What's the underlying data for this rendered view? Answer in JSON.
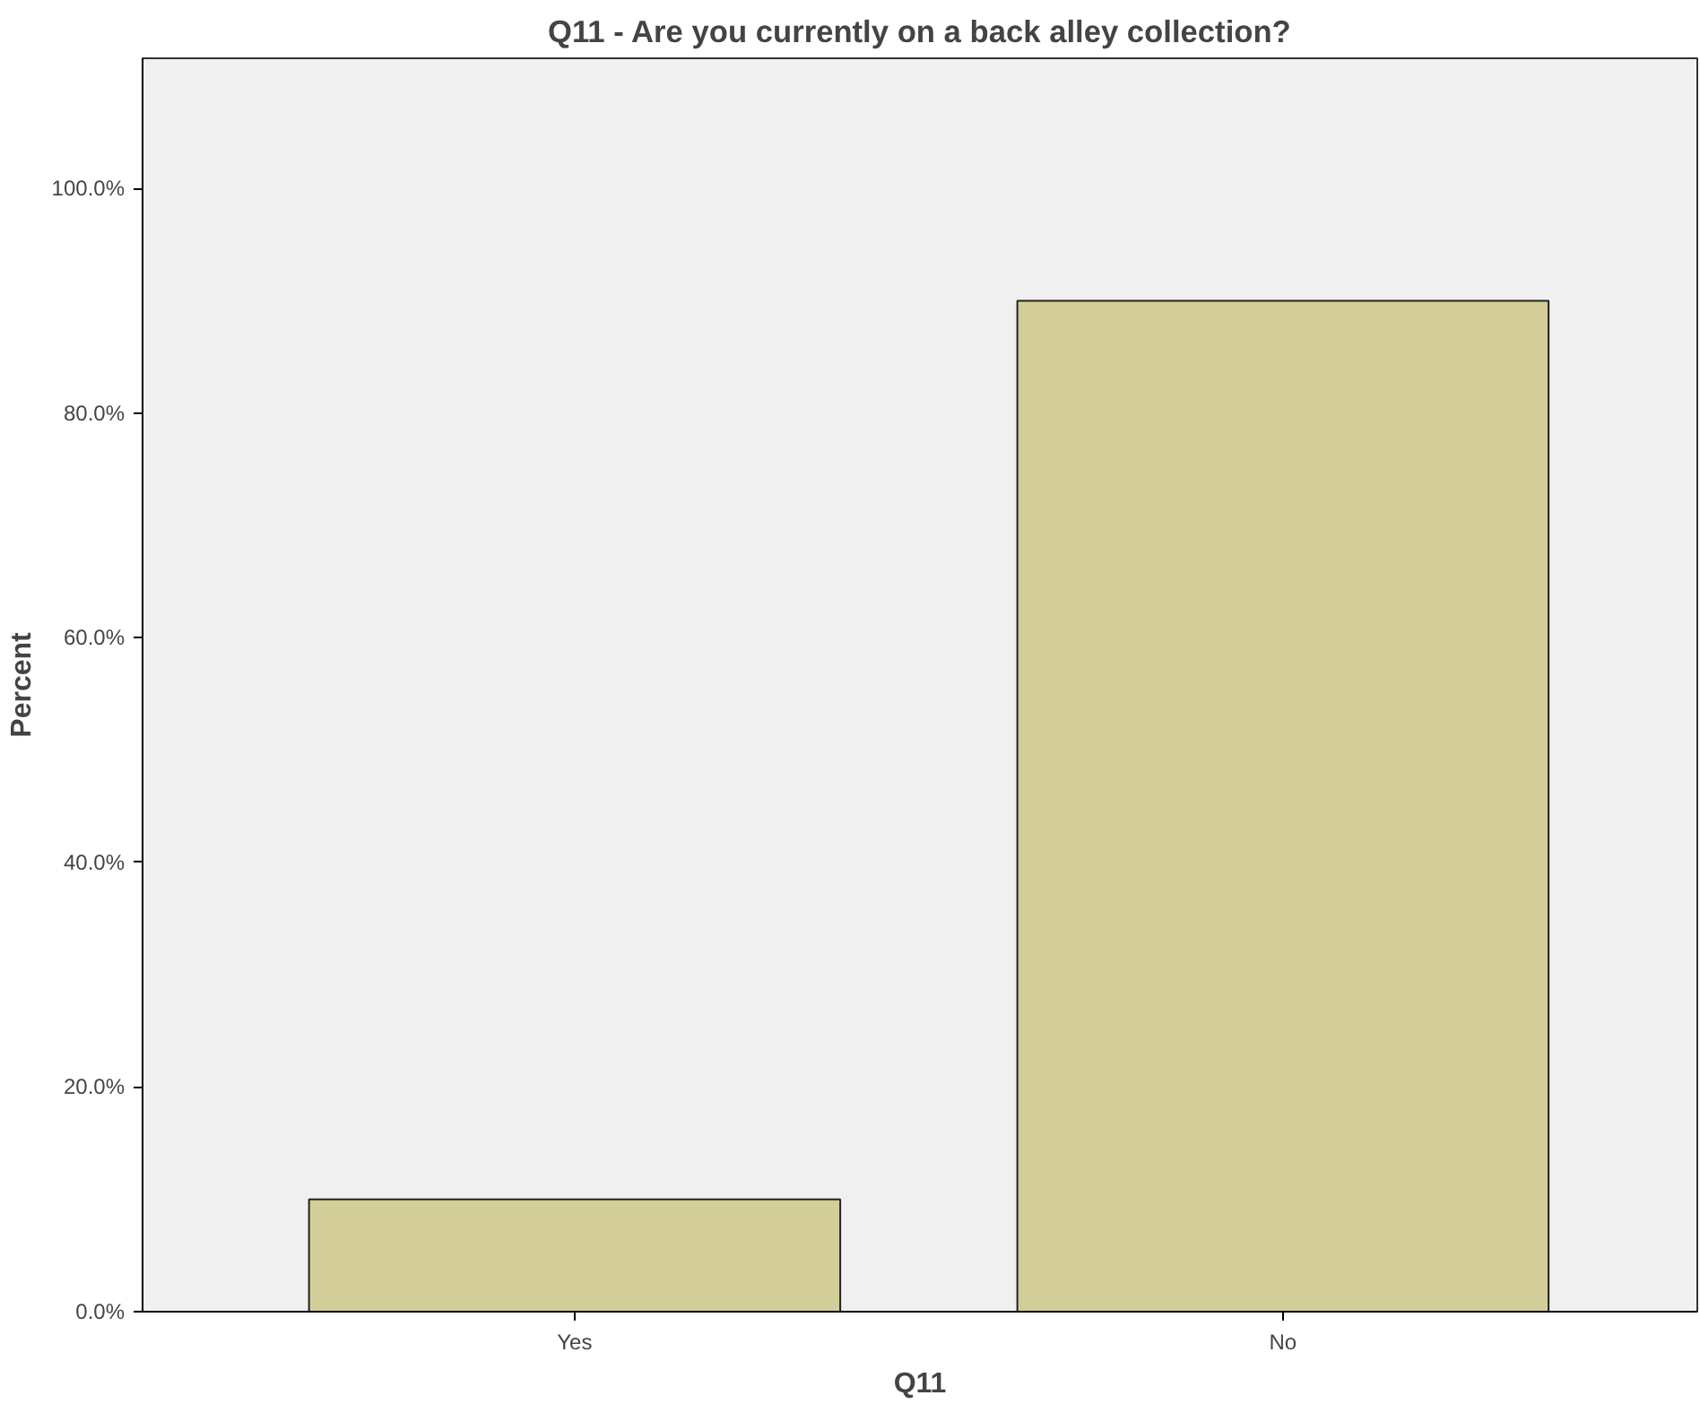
{
  "chart_data": {
    "type": "bar",
    "title": "Q11 - Are you currently on a back alley collection?",
    "xlabel": "Q11",
    "ylabel": "Percent",
    "categories": [
      "Yes",
      "No"
    ],
    "values": [
      10.0,
      90.0
    ],
    "color": "#d3cd97",
    "ylim": [
      0,
      111.6
    ],
    "yticks": [
      {
        "value": 0,
        "label": "0.0%"
      },
      {
        "value": 20,
        "label": "20.0%"
      },
      {
        "value": 40,
        "label": "40.0%"
      },
      {
        "value": 60,
        "label": "60.0%"
      },
      {
        "value": 80,
        "label": "80.0%"
      },
      {
        "value": 100,
        "label": "100.0%"
      }
    ],
    "grid": false
  }
}
